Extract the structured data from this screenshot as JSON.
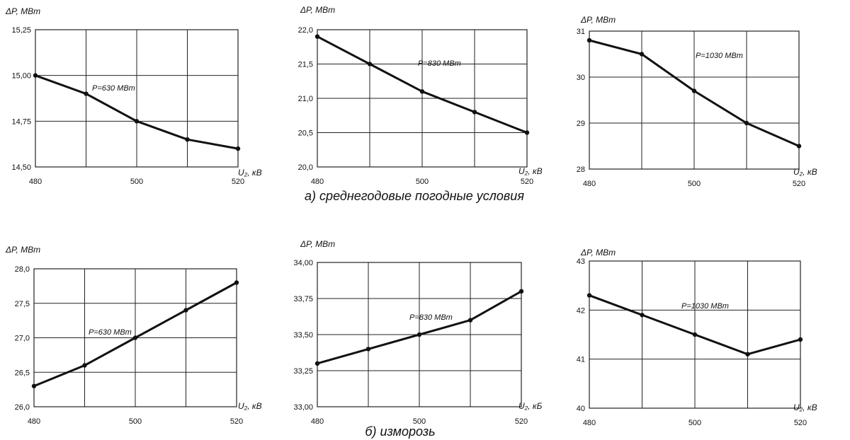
{
  "captions": [
    "а) среднегодовые погодные условия",
    "б) изморозь"
  ],
  "chart_data": [
    {
      "type": "line",
      "ylabel": "ΔP, МВт",
      "xlabel": "U₂, кВ",
      "xlim": [
        480,
        520
      ],
      "x_ticks": [
        480,
        490,
        500,
        510,
        520
      ],
      "x_tick_labels": [
        "480",
        "",
        "500",
        "",
        "520"
      ],
      "ylim": [
        14.5,
        15.25
      ],
      "y_ticks": [
        14.5,
        14.75,
        15.0,
        15.25
      ],
      "y_tick_labels": [
        "14,50",
        "14,75",
        "15,00",
        "15,25"
      ],
      "grid": true,
      "series": [
        {
          "name": "P=630 МВт",
          "x": [
            480,
            490,
            500,
            510,
            520
          ],
          "values": [
            15.0,
            14.9,
            14.75,
            14.65,
            14.6
          ]
        }
      ]
    },
    {
      "type": "line",
      "ylabel": "ΔP, МВт",
      "xlabel": "U₂, кВ",
      "xlim": [
        480,
        520
      ],
      "x_ticks": [
        480,
        490,
        500,
        510,
        520
      ],
      "x_tick_labels": [
        "480",
        "",
        "500",
        "",
        "520"
      ],
      "ylim": [
        20.0,
        22.0
      ],
      "y_ticks": [
        20.0,
        20.5,
        21.0,
        21.5,
        22.0
      ],
      "y_tick_labels": [
        "20,0",
        "20,5",
        "21,0",
        "21,5",
        "22,0"
      ],
      "grid": true,
      "series": [
        {
          "name": "P=830 МВт",
          "x": [
            480,
            490,
            500,
            510,
            520
          ],
          "values": [
            21.9,
            21.5,
            21.1,
            20.8,
            20.5
          ]
        }
      ]
    },
    {
      "type": "line",
      "ylabel": "ΔP, МВт",
      "xlabel": "U₂, кВ",
      "xlim": [
        480,
        520
      ],
      "x_ticks": [
        480,
        490,
        500,
        510,
        520
      ],
      "x_tick_labels": [
        "480",
        "",
        "500",
        "",
        "520"
      ],
      "ylim": [
        28,
        31
      ],
      "y_ticks": [
        28,
        29,
        30,
        31
      ],
      "y_tick_labels": [
        "28",
        "29",
        "30",
        "31"
      ],
      "grid": true,
      "series": [
        {
          "name": "P=1030 МВт",
          "x": [
            480,
            490,
            500,
            510,
            520
          ],
          "values": [
            30.8,
            30.5,
            29.7,
            29.0,
            28.5
          ]
        }
      ]
    },
    {
      "type": "line",
      "ylabel": "ΔP, МВт",
      "xlabel": "U₂, кВ",
      "xlim": [
        480,
        520
      ],
      "x_ticks": [
        480,
        490,
        500,
        510,
        520
      ],
      "x_tick_labels": [
        "480",
        "",
        "500",
        "",
        "520"
      ],
      "ylim": [
        26.0,
        28.0
      ],
      "y_ticks": [
        26.0,
        26.5,
        27.0,
        27.5,
        28.0
      ],
      "y_tick_labels": [
        "26,0",
        "26,5",
        "27,0",
        "27,5",
        "28,0"
      ],
      "grid": true,
      "series": [
        {
          "name": "P=630 МВт",
          "x": [
            480,
            490,
            500,
            510,
            520
          ],
          "values": [
            26.3,
            26.6,
            27.0,
            27.4,
            27.8
          ]
        }
      ]
    },
    {
      "type": "line",
      "ylabel": "ΔP, МВт",
      "xlabel": "U₂, кБ",
      "xlim": [
        480,
        520
      ],
      "x_ticks": [
        480,
        490,
        500,
        510,
        520
      ],
      "x_tick_labels": [
        "480",
        "",
        "500",
        "",
        "520"
      ],
      "ylim": [
        33.0,
        34.0
      ],
      "y_ticks": [
        33.0,
        33.25,
        33.5,
        33.75,
        34.0
      ],
      "y_tick_labels": [
        "33,00",
        "33,25",
        "33,50",
        "33,75",
        "34,00"
      ],
      "grid": true,
      "series": [
        {
          "name": "P=830 МВт",
          "x": [
            480,
            490,
            500,
            510,
            520
          ],
          "values": [
            33.3,
            33.4,
            33.5,
            33.6,
            33.8
          ]
        }
      ]
    },
    {
      "type": "line",
      "ylabel": "ΔP, МВт",
      "xlabel": "U₂, кВ",
      "xlim": [
        480,
        520
      ],
      "x_ticks": [
        480,
        490,
        500,
        510,
        520
      ],
      "x_tick_labels": [
        "480",
        "",
        "500",
        "",
        "520"
      ],
      "ylim": [
        40,
        43
      ],
      "y_ticks": [
        40,
        41,
        42,
        43
      ],
      "y_tick_labels": [
        "40",
        "41",
        "42",
        "43"
      ],
      "grid": true,
      "series": [
        {
          "name": "P=1030 МВт",
          "x": [
            480,
            490,
            500,
            510,
            520
          ],
          "values": [
            42.3,
            41.9,
            41.5,
            41.1,
            41.4
          ]
        }
      ]
    }
  ]
}
